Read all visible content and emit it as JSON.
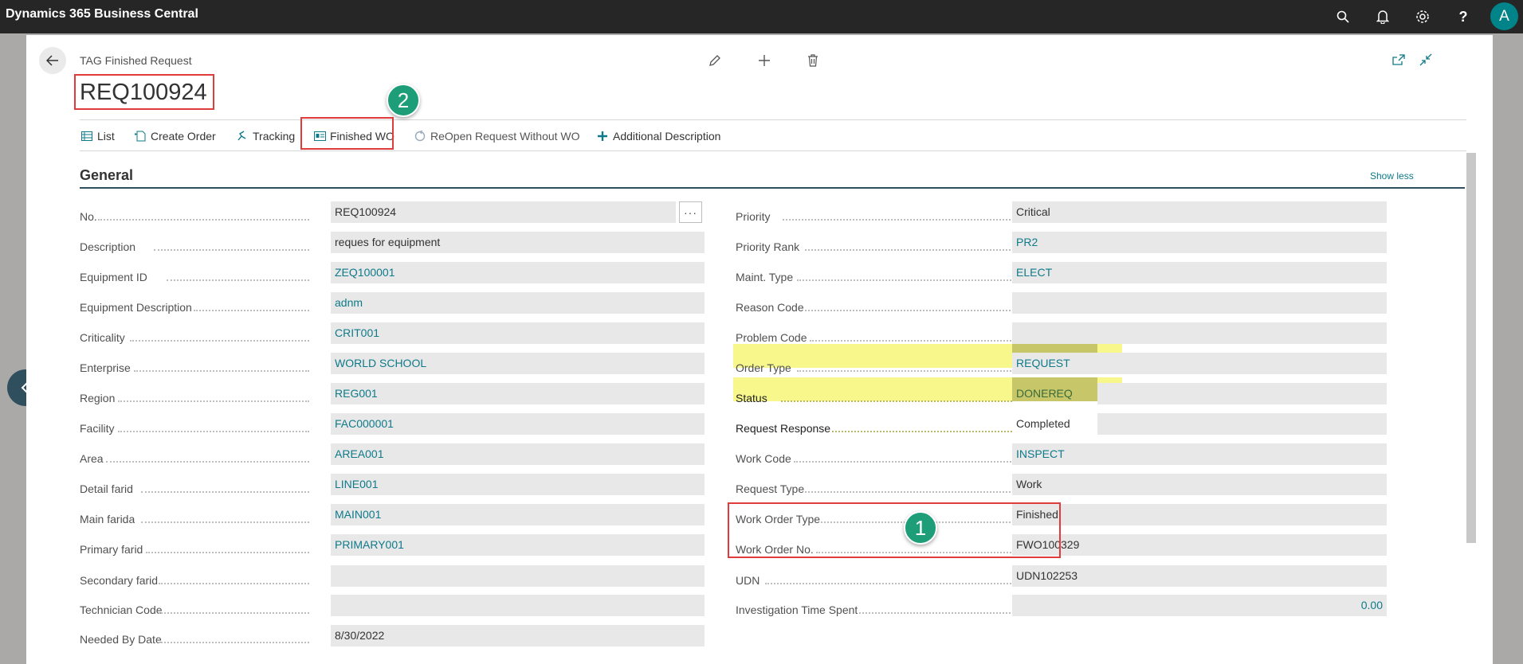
{
  "app": {
    "title": "Dynamics 365 Business Central",
    "user_initial": "A"
  },
  "page": {
    "caption": "TAG Finished Request",
    "record_title": "REQ100924"
  },
  "actions": {
    "list": "List",
    "create_order": "Create Order",
    "tracking": "Tracking",
    "finished_wo": "Finished WO",
    "reopen": "ReOpen Request Without WO",
    "additional_description": "Additional Description"
  },
  "badges": {
    "one": "1",
    "two": "2"
  },
  "section": {
    "title": "General",
    "show_less": "Show less"
  },
  "left_fields": [
    {
      "label": "No.",
      "value": "REQ100924"
    },
    {
      "label": "Description",
      "value": "reques for equipment"
    },
    {
      "label": "Equipment ID",
      "value": "ZEQ100001"
    },
    {
      "label": "Equipment Description",
      "value": "adnm"
    },
    {
      "label": "Criticality",
      "value": "CRIT001"
    },
    {
      "label": "Enterprise",
      "value": "WORLD SCHOOL"
    },
    {
      "label": "Region",
      "value": "REG001"
    },
    {
      "label": "Facility",
      "value": "FAC000001"
    },
    {
      "label": "Area",
      "value": "AREA001"
    },
    {
      "label": "Detail farid",
      "value": "LINE001"
    },
    {
      "label": "Main farida",
      "value": "MAIN001"
    },
    {
      "label": "Primary farid",
      "value": "PRIMARY001"
    },
    {
      "label": "Secondary farid",
      "value": ""
    },
    {
      "label": "Technician Code",
      "value": ""
    },
    {
      "label": "Needed By Date",
      "value": "8/30/2022"
    }
  ],
  "right_fields": [
    {
      "label": "Priority",
      "value": "Critical"
    },
    {
      "label": "Priority Rank",
      "value": "PR2"
    },
    {
      "label": "Maint. Type",
      "value": "ELECT"
    },
    {
      "label": "Reason Code",
      "value": ""
    },
    {
      "label": "Problem Code",
      "value": ""
    },
    {
      "label": "Order Type",
      "value": "REQUEST"
    },
    {
      "label": "Status",
      "value": "DONEREQ"
    },
    {
      "label": "Request Response",
      "value": "Completed"
    },
    {
      "label": "Work Code",
      "value": "INSPECT"
    },
    {
      "label": "Request Type",
      "value": "Work"
    },
    {
      "label": "Work Order Type",
      "value": "Finished"
    },
    {
      "label": "Work Order No.",
      "value": "FWO100329"
    },
    {
      "label": "UDN",
      "value": "UDN102253"
    },
    {
      "label": "Investigation Time Spent",
      "value": "0.00"
    }
  ],
  "colors": {
    "accent": "#0e7a8a",
    "badge": "#1d9e78",
    "highlight": "#f7f78c",
    "annotation": "#e03c3c"
  }
}
